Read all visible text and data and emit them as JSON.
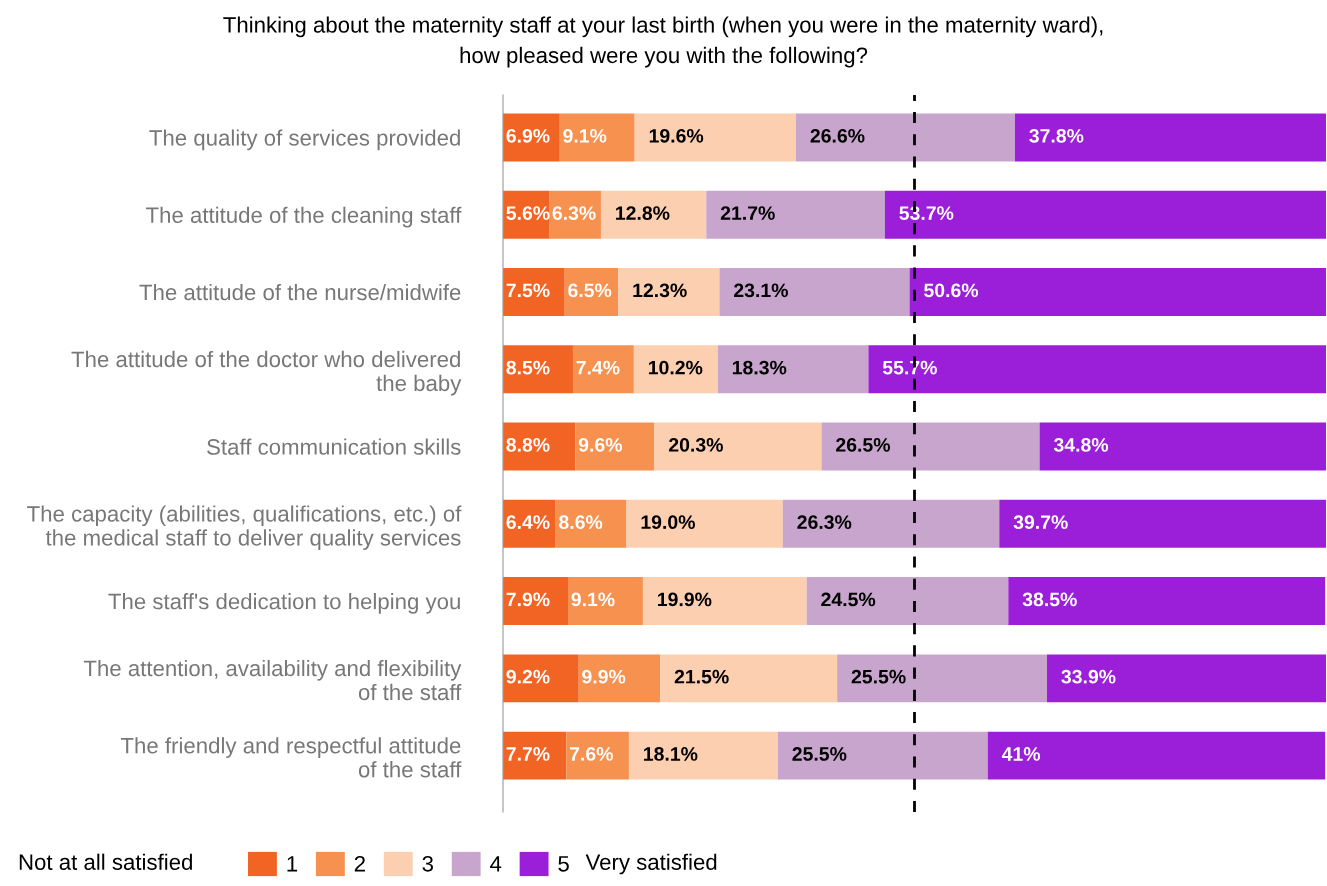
{
  "chart_data": {
    "type": "bar",
    "orientation": "horizontal",
    "stacked": true,
    "title": "Thinking about the maternity staff at your last birth (when you were in the maternity ward),\nhow pleased were you with the following?",
    "categories": [
      "The quality of services provided",
      "The attitude of the cleaning staff",
      "The attitude of the nurse/midwife",
      "The attitude of the doctor who delivered\nthe baby",
      "Staff communication skills",
      "The capacity (abilities, qualifications, etc.) of\nthe medical staff to deliver quality services",
      "The staff's dedication to helping you",
      "The attention, availability and flexibility\nof the staff",
      "The friendly and respectful attitude\nof the staff"
    ],
    "series": [
      {
        "name": "1",
        "color": "#f26424",
        "values": [
          6.9,
          5.6,
          7.5,
          8.5,
          8.8,
          6.4,
          7.9,
          9.2,
          7.7
        ],
        "value_labels": [
          "6.9%",
          "5.6%",
          "7.5%",
          "8.5%",
          "8.8%",
          "6.4%",
          "7.9%",
          "9.2%",
          "7.7%"
        ]
      },
      {
        "name": "2",
        "color": "#f6914f",
        "values": [
          9.1,
          6.3,
          6.5,
          7.4,
          9.6,
          8.6,
          9.1,
          9.9,
          7.6
        ],
        "value_labels": [
          "9.1%",
          "6.3%",
          "6.5%",
          "7.4%",
          "9.6%",
          "8.6%",
          "9.1%",
          "9.9%",
          "7.6%"
        ]
      },
      {
        "name": "3",
        "color": "#fccfb0",
        "values": [
          19.6,
          12.8,
          12.3,
          10.2,
          20.3,
          19.0,
          19.9,
          21.5,
          18.1
        ],
        "value_labels": [
          "19.6%",
          "12.8%",
          "12.3%",
          "10.2%",
          "20.3%",
          "19.0%",
          "19.9%",
          "21.5%",
          "18.1%"
        ]
      },
      {
        "name": "4",
        "color": "#c8a5cd",
        "values": [
          26.6,
          21.7,
          23.1,
          18.3,
          26.5,
          26.3,
          24.5,
          25.5,
          25.5
        ],
        "value_labels": [
          "26.6%",
          "21.7%",
          "23.1%",
          "18.3%",
          "26.5%",
          "26.3%",
          "24.5%",
          "25.5%",
          "25.5%"
        ]
      },
      {
        "name": "5",
        "color": "#9b1fd9",
        "values": [
          37.8,
          53.7,
          50.6,
          55.7,
          34.8,
          39.7,
          38.5,
          33.9,
          41.0
        ],
        "value_labels": [
          "37.8%",
          "53.7%",
          "50.6%",
          "55.7%",
          "34.8%",
          "39.7%",
          "38.5%",
          "33.9%",
          "41%"
        ]
      }
    ],
    "xlim": [
      0,
      100
    ],
    "tick_labels": "y",
    "grid": false,
    "legend": "bottom",
    "ref_lines": [
      {
        "axis": "x",
        "value": 50,
        "color": "#000000",
        "line_style": "dashed"
      }
    ],
    "annotations": [
      "Not at all satisfied",
      "Very satisfied"
    ]
  }
}
